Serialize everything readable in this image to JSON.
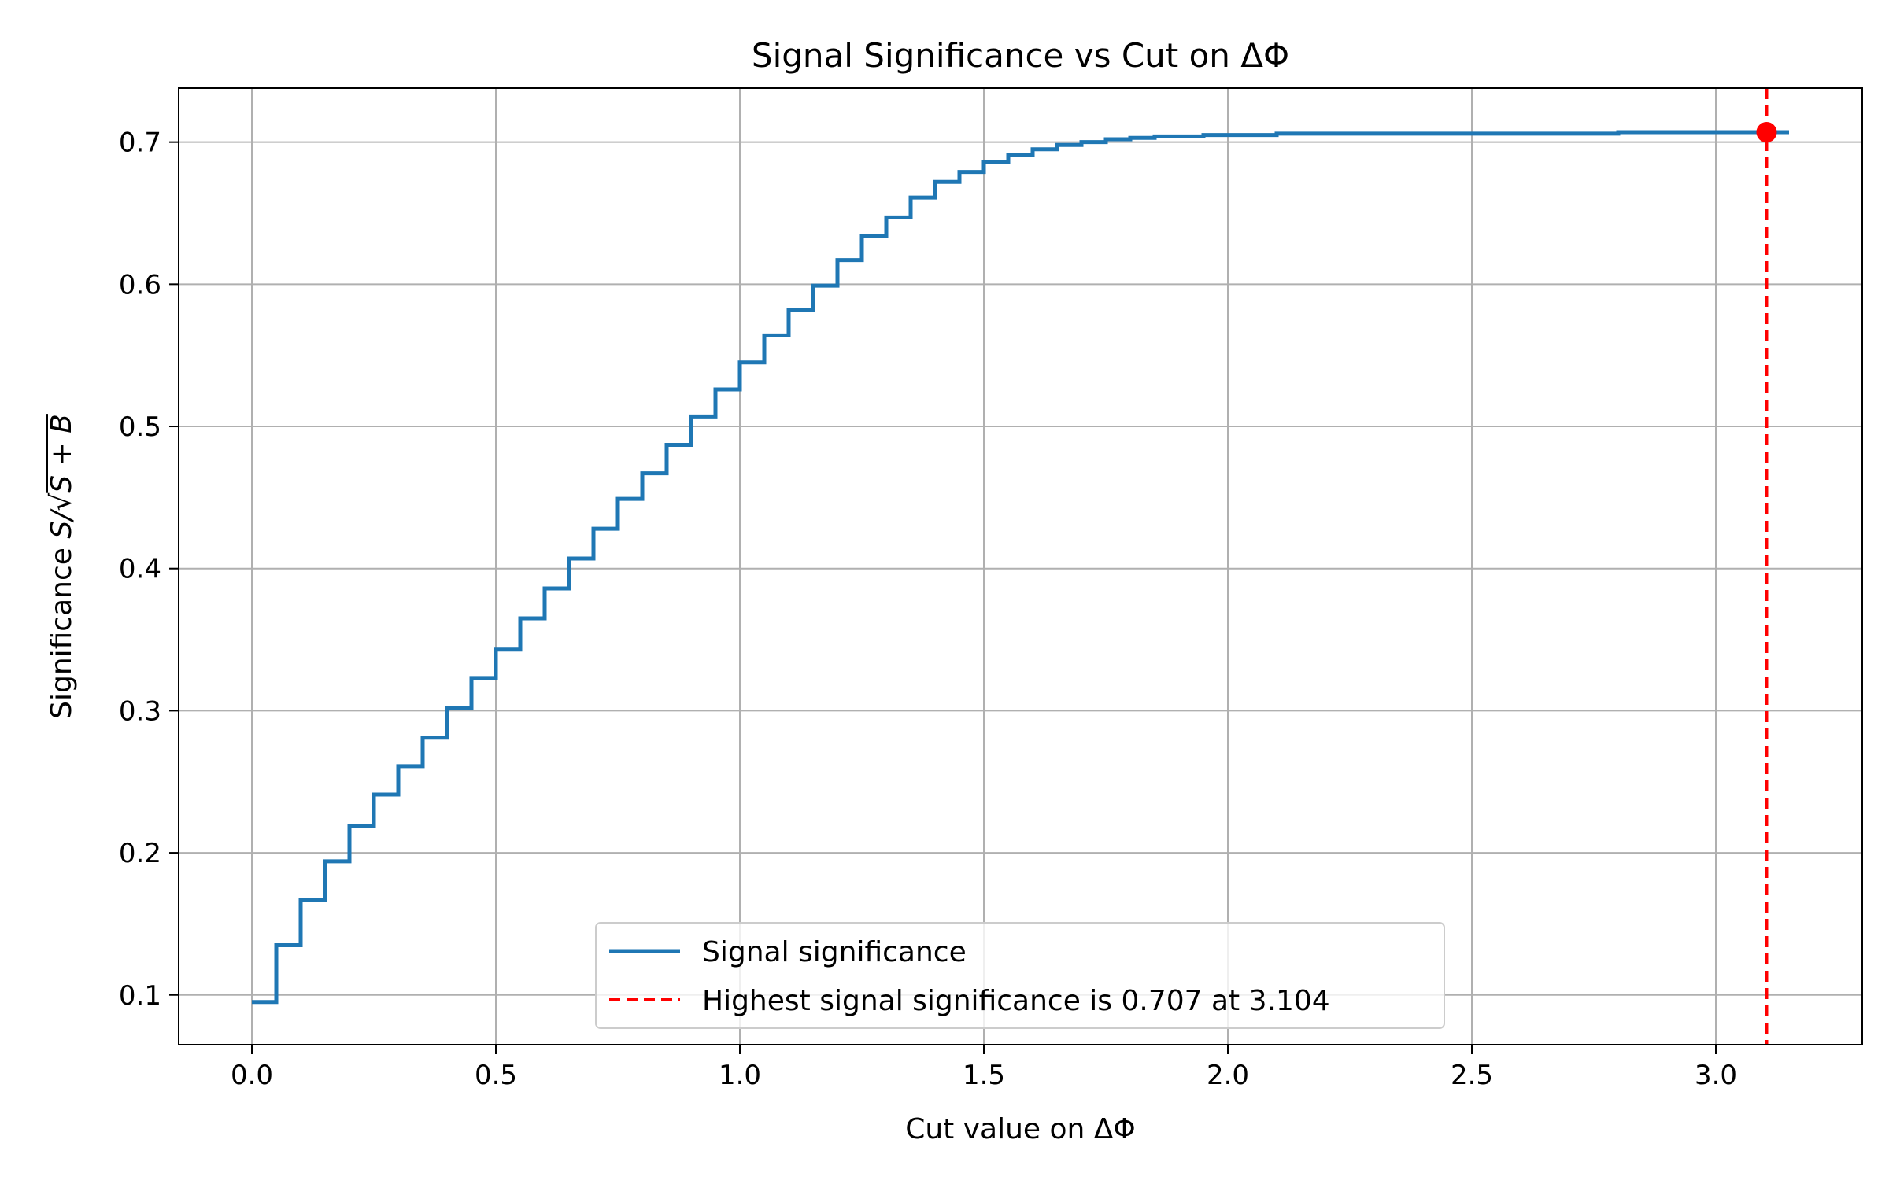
{
  "chart_data": {
    "type": "line",
    "title": "Signal Significance vs Cut on ΔΦ",
    "xlabel": "Cut value on ΔΦ",
    "ylabel_prefix": "Significance ",
    "ylabel_math": "S/√S + B",
    "xlim": [
      -0.15,
      3.3
    ],
    "ylim": [
      0.065,
      0.738
    ],
    "xticks": [
      0.0,
      0.5,
      1.0,
      1.5,
      2.0,
      2.5,
      3.0
    ],
    "xtick_labels": [
      "0.0",
      "0.5",
      "1.0",
      "1.5",
      "2.0",
      "2.5",
      "3.0"
    ],
    "yticks": [
      0.1,
      0.2,
      0.3,
      0.4,
      0.5,
      0.6,
      0.7
    ],
    "ytick_labels": [
      "0.1",
      "0.2",
      "0.3",
      "0.4",
      "0.5",
      "0.6",
      "0.7"
    ],
    "grid": true,
    "legend_position": "bottom-center",
    "series": [
      {
        "name": "Signal significance",
        "color": "#1f77b4",
        "style": "step",
        "x": [
          0.0,
          0.05,
          0.1,
          0.15,
          0.2,
          0.25,
          0.3,
          0.35,
          0.4,
          0.45,
          0.5,
          0.55,
          0.6,
          0.65,
          0.7,
          0.75,
          0.8,
          0.85,
          0.9,
          0.95,
          1.0,
          1.05,
          1.1,
          1.15,
          1.2,
          1.25,
          1.3,
          1.35,
          1.4,
          1.45,
          1.5,
          1.55,
          1.6,
          1.65,
          1.7,
          1.75,
          1.8,
          1.85,
          1.9,
          1.95,
          2.0,
          2.1,
          2.2,
          2.3,
          2.4,
          2.5,
          2.6,
          2.7,
          2.8,
          2.9,
          3.0,
          3.1,
          3.15
        ],
        "y": [
          0.095,
          0.135,
          0.167,
          0.194,
          0.219,
          0.241,
          0.261,
          0.281,
          0.302,
          0.323,
          0.343,
          0.365,
          0.386,
          0.407,
          0.428,
          0.449,
          0.467,
          0.487,
          0.507,
          0.526,
          0.545,
          0.564,
          0.582,
          0.599,
          0.617,
          0.634,
          0.647,
          0.661,
          0.672,
          0.679,
          0.686,
          0.691,
          0.695,
          0.698,
          0.7,
          0.702,
          0.703,
          0.704,
          0.704,
          0.705,
          0.705,
          0.706,
          0.706,
          0.706,
          0.706,
          0.706,
          0.706,
          0.706,
          0.707,
          0.707,
          0.707,
          0.707,
          0.707
        ]
      }
    ],
    "marker": {
      "name": "Highest signal significance is 0.707 at 3.104",
      "x": 3.104,
      "y": 0.707,
      "color": "#ff0000"
    }
  }
}
